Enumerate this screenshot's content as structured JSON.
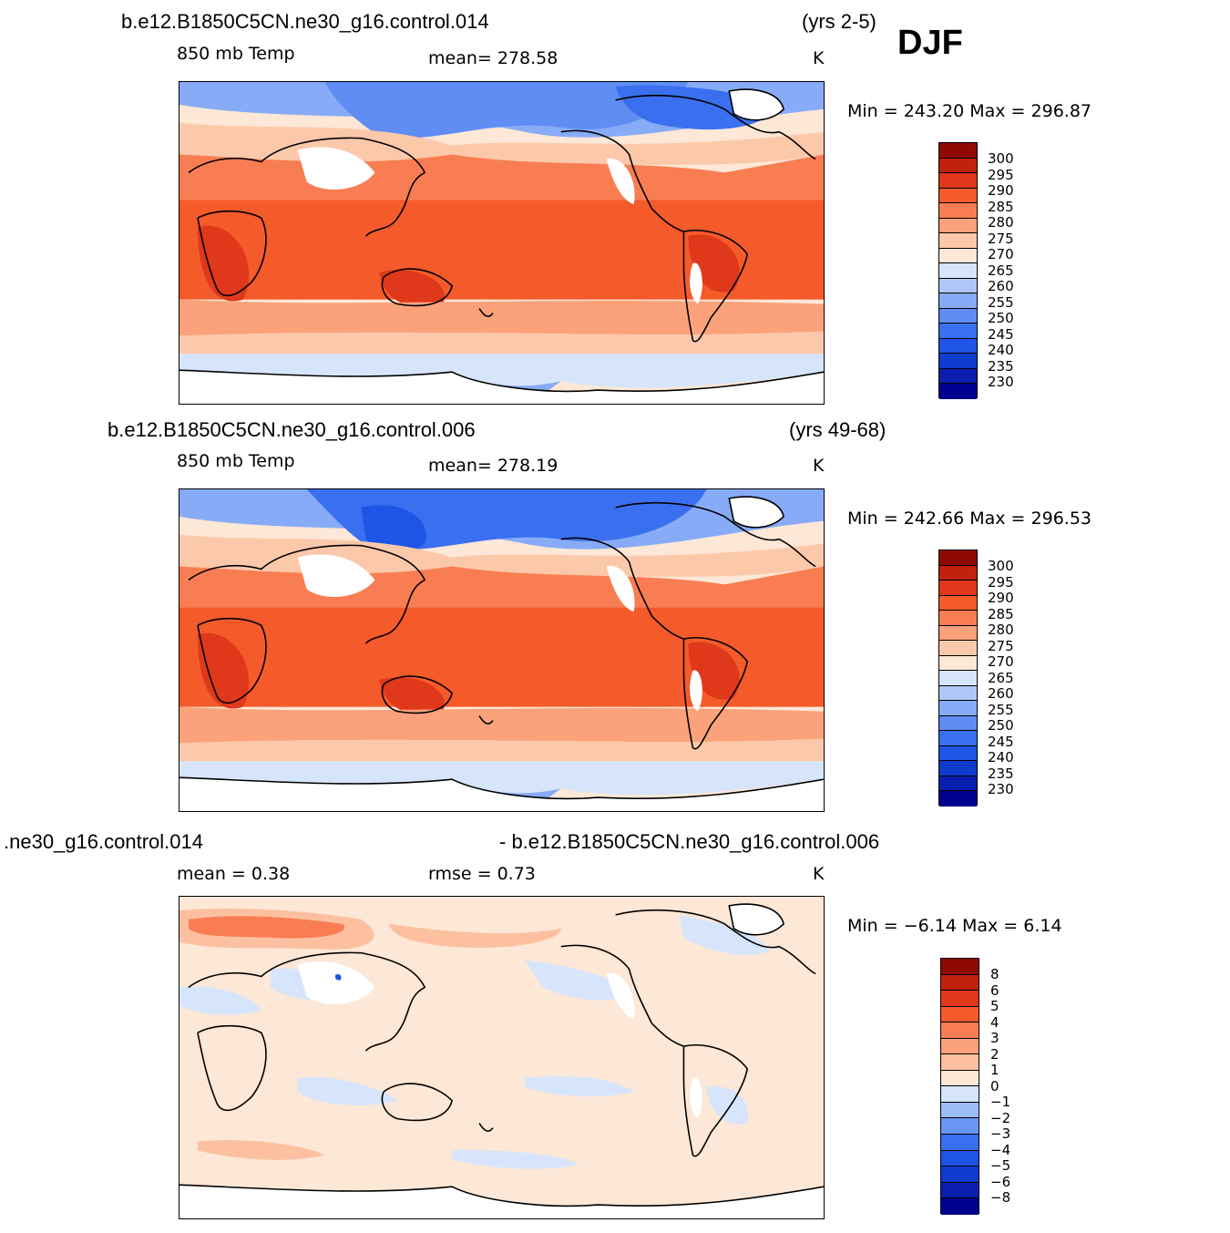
{
  "season": "DJF",
  "colors": {
    "abs": [
      "#000090",
      "#0a1fb0",
      "#0f3bcf",
      "#1e55e6",
      "#3a6ff0",
      "#5f8df4",
      "#87abf7",
      "#b0c8f9",
      "#d6e5fb",
      "#fde7d6",
      "#fcc8aa",
      "#fba27b",
      "#f97d52",
      "#f45a2a",
      "#e0381a",
      "#c1220f",
      "#900a05"
    ],
    "diff": [
      "#000090",
      "#0a1fb0",
      "#0f3bcf",
      "#1e55e6",
      "#3a6ff0",
      "#6a96f4",
      "#9dbcf8",
      "#d6e5fb",
      "#fde7d6",
      "#fcc0a0",
      "#fba27b",
      "#f97d52",
      "#f45a2a",
      "#e0381a",
      "#c1220f",
      "#900a05"
    ]
  },
  "panels": [
    {
      "case": "b.e12.B1850C5CN.ne30_g16.control.014",
      "years": "(yrs 2-5)",
      "variable": "850 mb Temp",
      "stat1": "mean= 278.58",
      "stat2": "",
      "units": "K",
      "minmax": "Min = 243.20 Max = 296.87",
      "ticks": [
        "300",
        "295",
        "290",
        "285",
        "280",
        "275",
        "270",
        "265",
        "260",
        "255",
        "250",
        "245",
        "240",
        "235",
        "230"
      ]
    },
    {
      "case": "b.e12.B1850C5CN.ne30_g16.control.006",
      "years": "(yrs 49-68)",
      "variable": "850 mb Temp",
      "stat1": "mean= 278.19",
      "stat2": "",
      "units": "K",
      "minmax": "Min = 242.66 Max = 296.53",
      "ticks": [
        "300",
        "295",
        "290",
        "285",
        "280",
        "275",
        "270",
        "265",
        "260",
        "255",
        "250",
        "245",
        "240",
        "235",
        "230"
      ]
    },
    {
      "case": ".ne30_g16.control.014",
      "years": "- b.e12.B1850C5CN.ne30_g16.control.006",
      "variable": "mean =    0.38",
      "stat1": "rmse =    0.73",
      "stat2": "",
      "units": "K",
      "minmax": "Min =   −6.14 Max =     6.14",
      "ticks": [
        "8",
        "6",
        "5",
        "4",
        "3",
        "2",
        "1",
        "0",
        "−1",
        "−2",
        "−3",
        "−4",
        "−5",
        "−6",
        "−8"
      ]
    }
  ]
}
